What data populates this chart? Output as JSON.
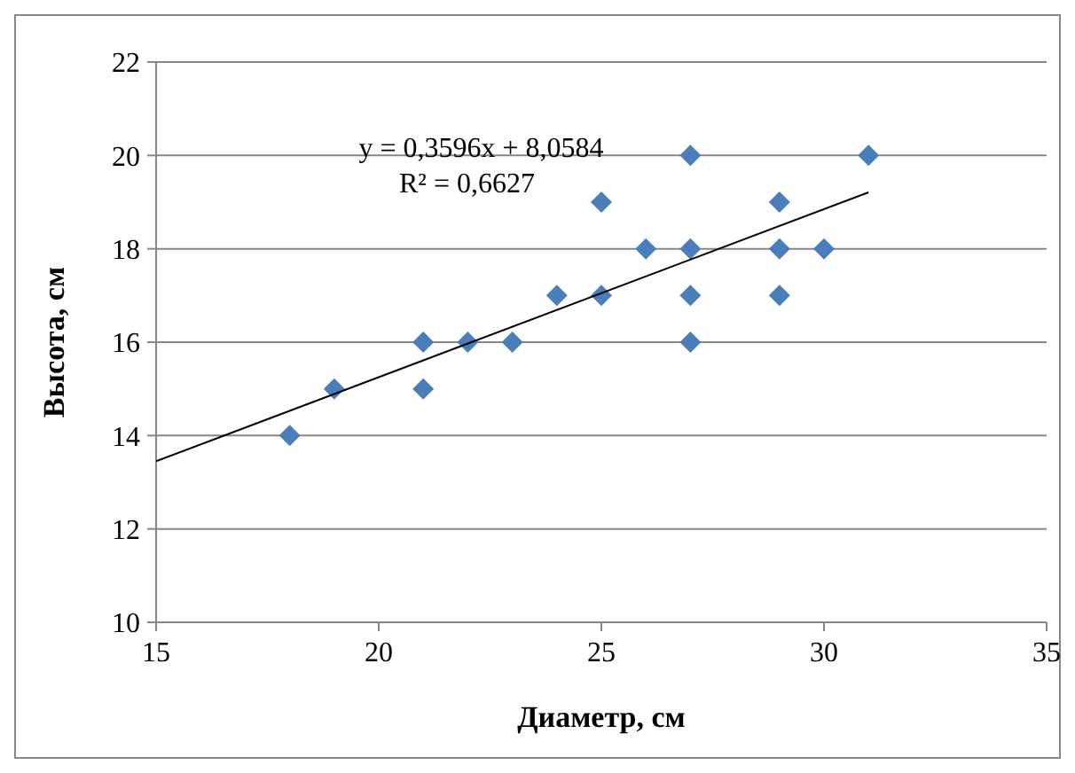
{
  "chart_data": {
    "type": "scatter",
    "xlabel": "Диаметр, см",
    "ylabel": "Высота, см",
    "xlim": [
      15,
      35
    ],
    "xticks": [
      15,
      20,
      25,
      30,
      35
    ],
    "ylim": [
      10,
      22
    ],
    "yticks": [
      10,
      12,
      14,
      16,
      18,
      20,
      22
    ],
    "grid": "y",
    "marker": "diamond",
    "annotations": [
      "y = 0,3596x + 8,0584",
      "R² = 0,6627"
    ],
    "series": [
      {
        "color": "#4a7ebb",
        "x": [
          18,
          19,
          21,
          21,
          22,
          23,
          24,
          25,
          25,
          26,
          27,
          27,
          27,
          27,
          29,
          29,
          29,
          30,
          31
        ],
        "values": [
          14,
          15,
          16,
          15,
          16,
          16,
          17,
          19,
          17,
          18,
          20,
          18,
          17,
          16,
          19,
          18,
          17,
          18,
          20
        ]
      },
      {
        "type": "line",
        "color": "#000000",
        "marker": "none",
        "x": [
          15,
          31
        ],
        "values": [
          13.45,
          19.21
        ]
      }
    ]
  }
}
